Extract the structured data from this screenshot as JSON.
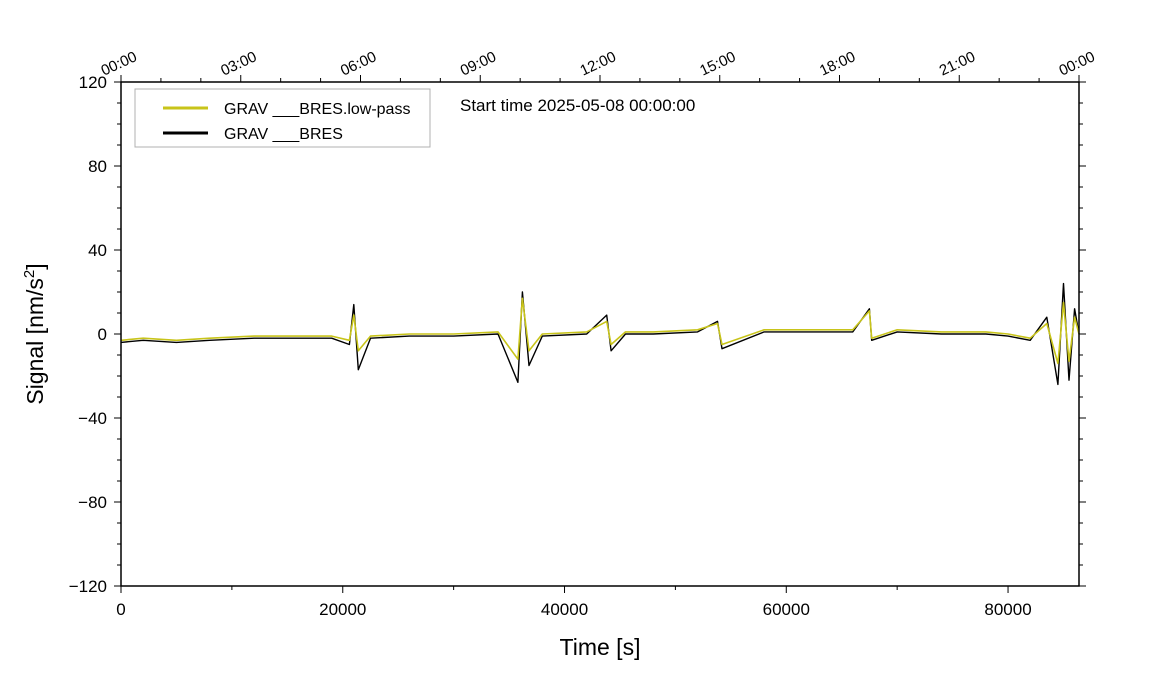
{
  "chart_data": {
    "type": "line",
    "annotation": "Start time 2025-05-08 00:00:00",
    "xlabel": "Time [s]",
    "ylabel": "Signal [nm/s",
    "ylabel_superscript": "2",
    "ylabel_suffix": "]",
    "xlim": [
      0,
      86400
    ],
    "ylim": [
      -120,
      120
    ],
    "grid": false,
    "legend_position": "top-left",
    "x_ticks": [
      {
        "value": 0,
        "label": "0"
      },
      {
        "value": 20000,
        "label": "20000"
      },
      {
        "value": 40000,
        "label": "40000"
      },
      {
        "value": 60000,
        "label": "60000"
      },
      {
        "value": 80000,
        "label": "80000"
      }
    ],
    "y_ticks": [
      {
        "value": 120,
        "label": "120"
      },
      {
        "value": 80,
        "label": "80"
      },
      {
        "value": 40,
        "label": "40"
      },
      {
        "value": 0,
        "label": "0"
      },
      {
        "value": -40,
        "label": "−40"
      },
      {
        "value": -80,
        "label": "−80"
      },
      {
        "value": -120,
        "label": "−120"
      }
    ],
    "top_ticks": [
      {
        "value": 0,
        "label": "00:00"
      },
      {
        "value": 10800,
        "label": "03:00"
      },
      {
        "value": 21600,
        "label": "06:00"
      },
      {
        "value": 32400,
        "label": "09:00"
      },
      {
        "value": 43200,
        "label": "12:00"
      },
      {
        "value": 54000,
        "label": "15:00"
      },
      {
        "value": 64800,
        "label": "18:00"
      },
      {
        "value": 75600,
        "label": "21:00"
      },
      {
        "value": 86400,
        "label": "00:00"
      }
    ],
    "series": [
      {
        "name": "GRAV ___BRES.low-pass",
        "color": "#c8c41a",
        "x": [
          0,
          2000,
          5000,
          8000,
          12000,
          16000,
          19000,
          20600,
          21000,
          21400,
          22500,
          26000,
          30000,
          34000,
          35800,
          36200,
          36800,
          38000,
          42000,
          43800,
          44200,
          45500,
          48000,
          52000,
          53800,
          54200,
          58000,
          62000,
          66000,
          67500,
          67700,
          70000,
          74000,
          78000,
          80000,
          82000,
          83500,
          84500,
          85000,
          85500,
          86000,
          86400
        ],
        "values": [
          -3,
          -2,
          -3,
          -2,
          -1,
          -1,
          -1,
          -3,
          9,
          -8,
          -1,
          0,
          0,
          1,
          -12,
          17,
          -8,
          0,
          1,
          6,
          -5,
          1,
          1,
          2,
          5,
          -5,
          2,
          2,
          2,
          11,
          -2,
          2,
          1,
          1,
          0,
          -2,
          5,
          -14,
          15,
          -13,
          8,
          0
        ]
      },
      {
        "name": "GRAV ___BRES",
        "color": "#000000",
        "x": [
          0,
          2000,
          5000,
          8000,
          12000,
          16000,
          19000,
          20600,
          21000,
          21400,
          22500,
          26000,
          30000,
          34000,
          35800,
          36200,
          36800,
          38000,
          42000,
          43800,
          44200,
          45500,
          48000,
          52000,
          53800,
          54200,
          58000,
          62000,
          66000,
          67500,
          67700,
          70000,
          74000,
          78000,
          80000,
          82000,
          83500,
          84500,
          85000,
          85500,
          86000,
          86400
        ],
        "values": [
          -4,
          -3,
          -4,
          -3,
          -2,
          -2,
          -2,
          -5,
          14,
          -17,
          -2,
          -1,
          -1,
          0,
          -23,
          20,
          -15,
          -1,
          0,
          9,
          -8,
          0,
          0,
          1,
          6,
          -7,
          1,
          1,
          1,
          12,
          -3,
          1,
          0,
          0,
          -1,
          -3,
          8,
          -24,
          24,
          -22,
          12,
          0
        ]
      }
    ]
  }
}
